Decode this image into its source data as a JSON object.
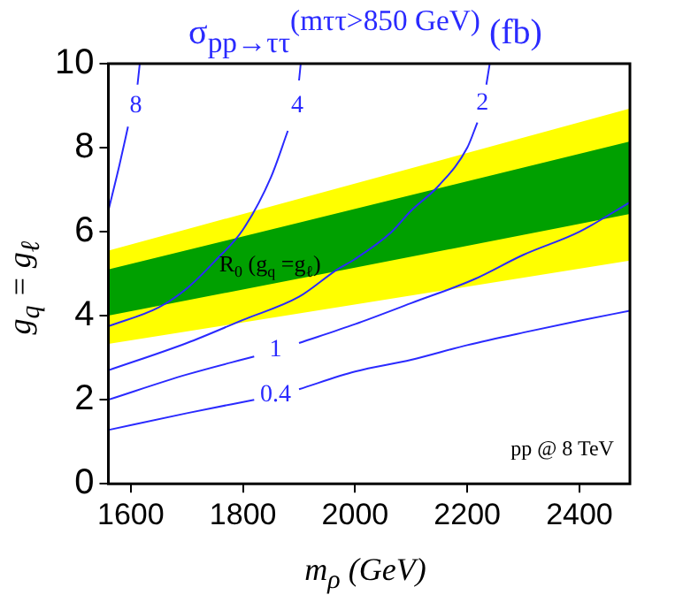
{
  "chart_data": {
    "type": "line",
    "title": "σ$_{pp→ττ}$$^{(mττ>850 GeV)}$ (fb)",
    "xlabel": "m$_{ρ}$ (GeV)",
    "ylabel": "g$_{q}$ = g$_{ℓ}$",
    "xlim": [
      1560,
      2490
    ],
    "xticks": [
      1600,
      1800,
      2000,
      2200,
      2400
    ],
    "ylim": [
      0,
      10
    ],
    "yticks": [
      0,
      2,
      4,
      6,
      8,
      10
    ],
    "grid": false,
    "legend": false,
    "series": [
      {
        "type": "area",
        "color": "#ffff00",
        "x": [
          1560,
          2490
        ],
        "values": [
          null,
          null
        ],
        "lower": [
          3.33,
          5.31
        ],
        "upper": [
          5.55,
          8.93
        ]
      },
      {
        "type": "area",
        "color": "#00a000",
        "x": [
          1560,
          2490
        ],
        "values": [
          null,
          null
        ],
        "lower": [
          4.0,
          6.42
        ],
        "upper": [
          5.1,
          8.15
        ]
      },
      {
        "name": "8",
        "color": "#2a2aff",
        "x": [
          1560,
          1580,
          1595,
          1609,
          1612,
          1616
        ],
        "values": [
          6.5,
          7.6,
          8.5,
          null,
          9.5,
          10
        ]
      },
      {
        "name": "4",
        "color": "#2a2aff",
        "x": [
          1560,
          1650,
          1700,
          1750,
          1800,
          1850,
          1880,
          1897,
          1900,
          1903
        ],
        "values": [
          3.75,
          4.2,
          4.65,
          5.3,
          6.05,
          7.3,
          8.4,
          null,
          9.6,
          10
        ]
      },
      {
        "name": "2",
        "color": "#2a2aff",
        "x": [
          1560,
          1700,
          1800,
          1900,
          1968,
          2000,
          2063,
          2100,
          2148,
          2200,
          2218,
          2227,
          2234,
          2240
        ],
        "values": [
          2.7,
          3.35,
          3.9,
          4.45,
          5.1,
          5.35,
          5.97,
          6.5,
          7.08,
          8.0,
          8.6,
          null,
          9.5,
          10
        ]
      },
      {
        "name": "1",
        "color": "#2a2aff",
        "x": [
          1560,
          1700,
          1820,
          1858,
          1900,
          2000,
          2100,
          2211,
          2300,
          2400,
          2490
        ],
        "values": [
          2.0,
          2.6,
          3.03,
          null,
          3.35,
          3.8,
          4.3,
          4.86,
          5.45,
          6.0,
          6.7
        ]
      },
      {
        "name": "0.4",
        "color": "#2a2aff",
        "x": [
          1560,
          1700,
          1820,
          1858,
          1900,
          2000,
          2100,
          2200,
          2300,
          2400,
          2490
        ],
        "values": [
          1.28,
          1.68,
          2.0,
          null,
          2.25,
          2.67,
          2.95,
          3.3,
          3.6,
          3.88,
          4.12
        ]
      }
    ],
    "annotations": [
      "R$_{0}$ (g$_{q}$ =g$_{ℓ}$)",
      "pp @ 8 TeV"
    ]
  }
}
